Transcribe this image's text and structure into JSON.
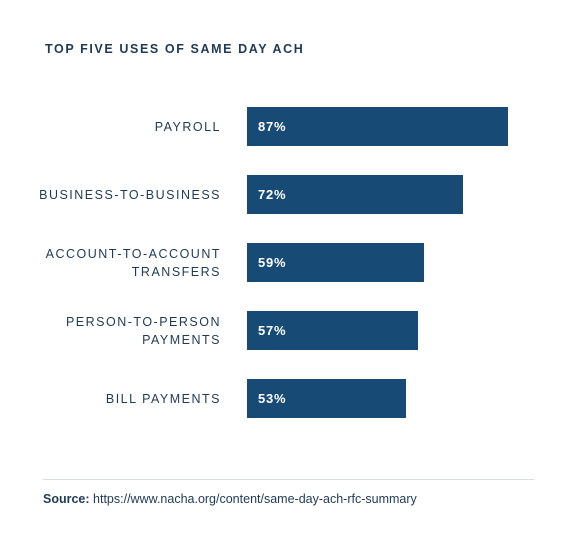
{
  "chart_data": {
    "type": "bar",
    "orientation": "horizontal",
    "title": "TOP FIVE USES OF SAME DAY ACH",
    "categories": [
      [
        "PAYROLL"
      ],
      [
        "BUSINESS-TO-BUSINESS"
      ],
      [
        "ACCOUNT-TO-ACCOUNT",
        "TRANSFERS"
      ],
      [
        "PERSON-TO-PERSON",
        "PAYMENTS"
      ],
      [
        "BILL PAYMENTS"
      ]
    ],
    "values": [
      87,
      72,
      59,
      57,
      53
    ],
    "value_labels": [
      "87%",
      "72%",
      "59%",
      "57%",
      "53%"
    ],
    "xlim": [
      0,
      100
    ],
    "grid": false,
    "bar_color": "#174a75"
  },
  "source": {
    "label": "Source:",
    "text": "https://www.nacha.org/content/same-day-ach-rfc-summary"
  }
}
